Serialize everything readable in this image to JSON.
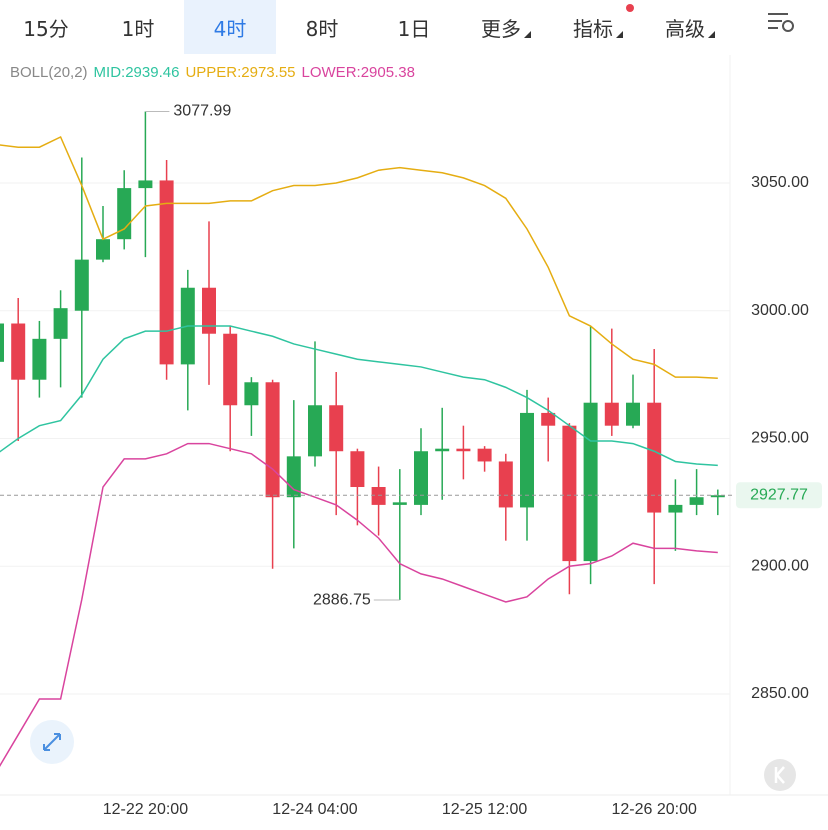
{
  "tabs": [
    {
      "label": "15分"
    },
    {
      "label": "1时"
    },
    {
      "label": "4时",
      "active": true
    },
    {
      "label": "8时"
    },
    {
      "label": "1日"
    },
    {
      "label": "更多",
      "menu": true
    },
    {
      "label": "指标",
      "menu": true,
      "badge": true
    },
    {
      "label": "高级",
      "menu": true
    }
  ],
  "chart_data": {
    "type": "candlestick",
    "indicator": "BOLL(20,2)",
    "categories": [
      null,
      null,
      null,
      null,
      null,
      null,
      null,
      "12-22 20:00",
      null,
      null,
      null,
      null,
      null,
      null,
      null,
      "12-24 04:00",
      null,
      null,
      null,
      null,
      null,
      null,
      null,
      "12-25 12:00",
      null,
      null,
      null,
      null,
      null,
      null,
      null,
      "12-26 20:00",
      null,
      null,
      null
    ],
    "open": [
      2980,
      2995,
      2973,
      2989,
      3000,
      3020,
      3028,
      3048,
      3051,
      2979,
      3009,
      2991,
      2963,
      2972,
      2927,
      2943,
      2963,
      2945,
      2931,
      2924,
      2924,
      2945,
      2946,
      2946,
      2941,
      2923,
      2960,
      2955,
      2902,
      2964,
      2955,
      2964,
      2921,
      2924,
      2927
    ],
    "high": [
      2996,
      3005,
      2996,
      3008,
      3060,
      3041,
      3055,
      3077.99,
      3059,
      3016,
      3035,
      2994,
      2974,
      2973,
      2965,
      2988,
      2976,
      2946,
      2939,
      2938,
      2954,
      2962,
      2955,
      2947,
      2944,
      2969,
      2966,
      2956,
      2994,
      2993,
      2975,
      2985,
      2934,
      2938,
      2930
    ],
    "low": [
      2975,
      2949,
      2966,
      2970,
      2966,
      3019,
      3024,
      3021,
      2973,
      2961,
      2971,
      2945,
      2951,
      2899,
      2907,
      2939,
      2920,
      2916,
      2912,
      2886.75,
      2920,
      2926,
      2934,
      2937,
      2910,
      2910,
      2941,
      2889,
      2893,
      2951,
      2954,
      2893,
      2906,
      2920,
      2920
    ],
    "close": [
      2995,
      2973,
      2989,
      3001,
      3020,
      3028,
      3048,
      3051,
      2979,
      3009,
      2991,
      2963,
      2972,
      2927,
      2943,
      2963,
      2945,
      2931,
      2924,
      2925,
      2945,
      2946,
      2945,
      2941,
      2923,
      2960,
      2955,
      2902,
      2964,
      2955,
      2964,
      2921,
      2924,
      2927,
      2927.77
    ],
    "up_color": "#27a955",
    "down_color": "#e8404f",
    "series": [
      {
        "name": "MID:2939.46",
        "color": "#2fc4a0",
        "values": [
          2944,
          2950,
          2955,
          2957,
          2967,
          2981,
          2989,
          2992,
          2992,
          2994,
          2994,
          2994,
          2992,
          2990,
          2987,
          2985,
          2983,
          2981,
          2980,
          2979,
          2978,
          2976,
          2974,
          2973,
          2970,
          2966,
          2961,
          2955,
          2949,
          2949,
          2948,
          2945,
          2941,
          2940,
          2939.46
        ]
      },
      {
        "name": "UPPER:2973.55",
        "color": "#e5ad12",
        "values": [
          3065,
          3064,
          3064,
          3068,
          3049,
          3028,
          3032,
          3041,
          3042,
          3042,
          3042,
          3043,
          3043,
          3047,
          3049,
          3049,
          3050,
          3052,
          3055,
          3056,
          3055,
          3054,
          3052,
          3049,
          3044,
          3032,
          3017,
          2998,
          2994,
          2987,
          2981,
          2979,
          2974,
          2974,
          2973.55
        ]
      },
      {
        "name": "LOWER:2905.38",
        "color": "#d9449e",
        "values": [
          2820,
          2834,
          2848,
          2848,
          2887,
          2931,
          2942,
          2942,
          2944,
          2948,
          2948,
          2946,
          2944,
          2938,
          2930,
          2927,
          2924,
          2918,
          2911,
          2901,
          2897,
          2895,
          2892,
          2889,
          2886,
          2888,
          2895,
          2900,
          2901,
          2904,
          2909,
          2907,
          2907,
          2906,
          2905.38
        ]
      }
    ],
    "ylim": [
      2812.4,
      3100.1
    ],
    "yticks": [
      {
        "value": 2850,
        "label": "2850.00"
      },
      {
        "value": 2900,
        "label": "2900.00"
      },
      {
        "value": 2950,
        "label": "2950.00"
      },
      {
        "value": 3000,
        "label": "3000.00"
      },
      {
        "value": 3050,
        "label": "3050.00"
      }
    ],
    "grid": true
  }
}
